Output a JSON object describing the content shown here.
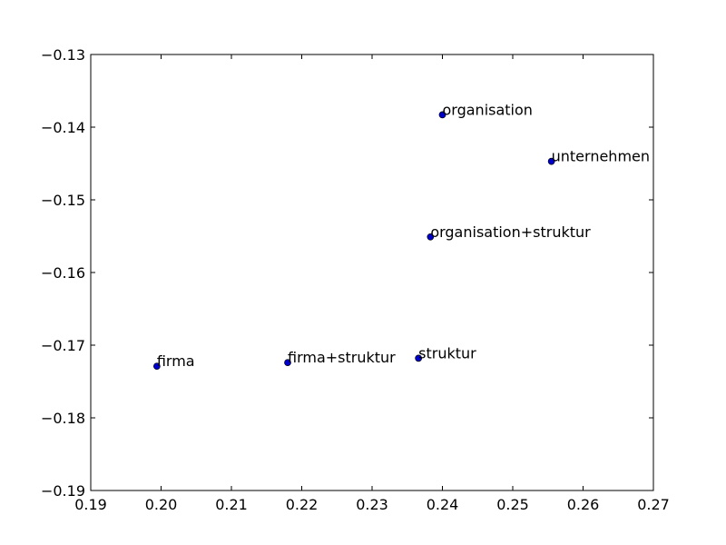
{
  "chart_data": {
    "type": "scatter",
    "title": "",
    "xlabel": "",
    "ylabel": "",
    "xlim": [
      0.19,
      0.27
    ],
    "ylim": [
      -0.19,
      -0.13
    ],
    "grid": false,
    "marker_color": "#0000cc",
    "points": [
      {
        "x": 0.24,
        "y": -0.1383,
        "label": "organisation"
      },
      {
        "x": 0.2555,
        "y": -0.1447,
        "label": "unternehmen"
      },
      {
        "x": 0.2383,
        "y": -0.1551,
        "label": "organisation+struktur"
      },
      {
        "x": 0.2366,
        "y": -0.1718,
        "label": "struktur"
      },
      {
        "x": 0.218,
        "y": -0.1724,
        "label": "firma+struktur"
      },
      {
        "x": 0.1994,
        "y": -0.1729,
        "label": "firma"
      }
    ],
    "xticks": [
      {
        "value": 0.19,
        "label": "0.19"
      },
      {
        "value": 0.2,
        "label": "0.20"
      },
      {
        "value": 0.21,
        "label": "0.21"
      },
      {
        "value": 0.22,
        "label": "0.22"
      },
      {
        "value": 0.23,
        "label": "0.23"
      },
      {
        "value": 0.24,
        "label": "0.24"
      },
      {
        "value": 0.25,
        "label": "0.25"
      },
      {
        "value": 0.26,
        "label": "0.26"
      },
      {
        "value": 0.27,
        "label": "0.27"
      }
    ],
    "yticks": [
      {
        "value": -0.13,
        "label": "−0.13"
      },
      {
        "value": -0.14,
        "label": "−0.14"
      },
      {
        "value": -0.15,
        "label": "−0.15"
      },
      {
        "value": -0.16,
        "label": "−0.16"
      },
      {
        "value": -0.17,
        "label": "−0.17"
      },
      {
        "value": -0.18,
        "label": "−0.18"
      },
      {
        "value": -0.19,
        "label": "−0.19"
      }
    ]
  }
}
